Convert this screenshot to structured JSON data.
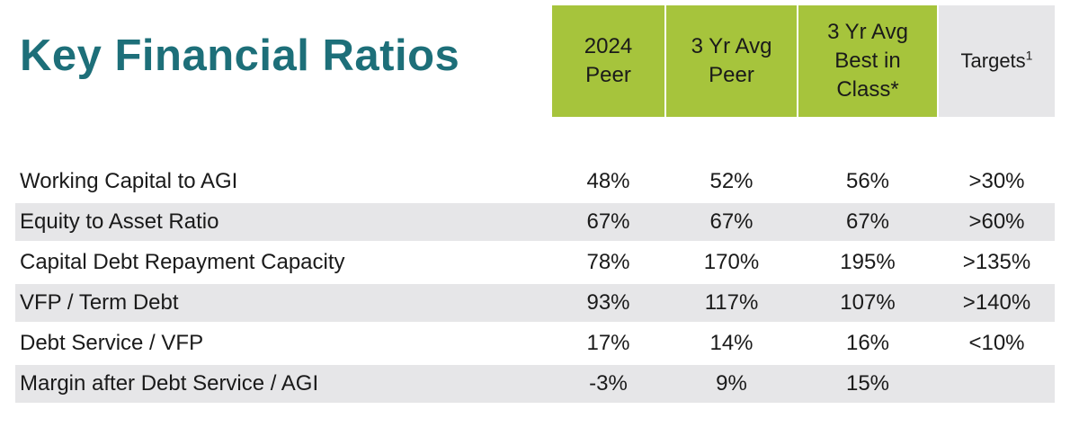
{
  "title": "Key Financial Ratios",
  "columns": [
    {
      "lines": [
        "2024",
        "Peer"
      ]
    },
    {
      "lines": [
        "3 Yr Avg",
        "Peer"
      ]
    },
    {
      "lines": [
        "3 Yr Avg",
        "Best in",
        "Class*"
      ]
    },
    {
      "lines": [
        "Targets"
      ],
      "superscript": "1"
    }
  ],
  "colors": {
    "title": "#1d6f79",
    "header_green": "#a6c43c",
    "shade_gray": "#e6e6e8"
  },
  "rows": [
    {
      "label": "Working Capital to AGI",
      "values": [
        "48%",
        "52%",
        "56%",
        ">30%"
      ]
    },
    {
      "label": "Equity to Asset Ratio",
      "values": [
        "67%",
        "67%",
        "67%",
        ">60%"
      ]
    },
    {
      "label": "Capital Debt Repayment Capacity",
      "values": [
        "78%",
        "170%",
        "195%",
        ">135%"
      ]
    },
    {
      "label": "VFP / Term Debt",
      "values": [
        "93%",
        "117%",
        "107%",
        ">140%"
      ]
    },
    {
      "label": "Debt Service / VFP",
      "values": [
        "17%",
        "14%",
        "16%",
        "<10%"
      ]
    },
    {
      "label": "Margin after Debt Service / AGI",
      "values": [
        "-3%",
        "9%",
        "15%",
        ""
      ]
    }
  ]
}
